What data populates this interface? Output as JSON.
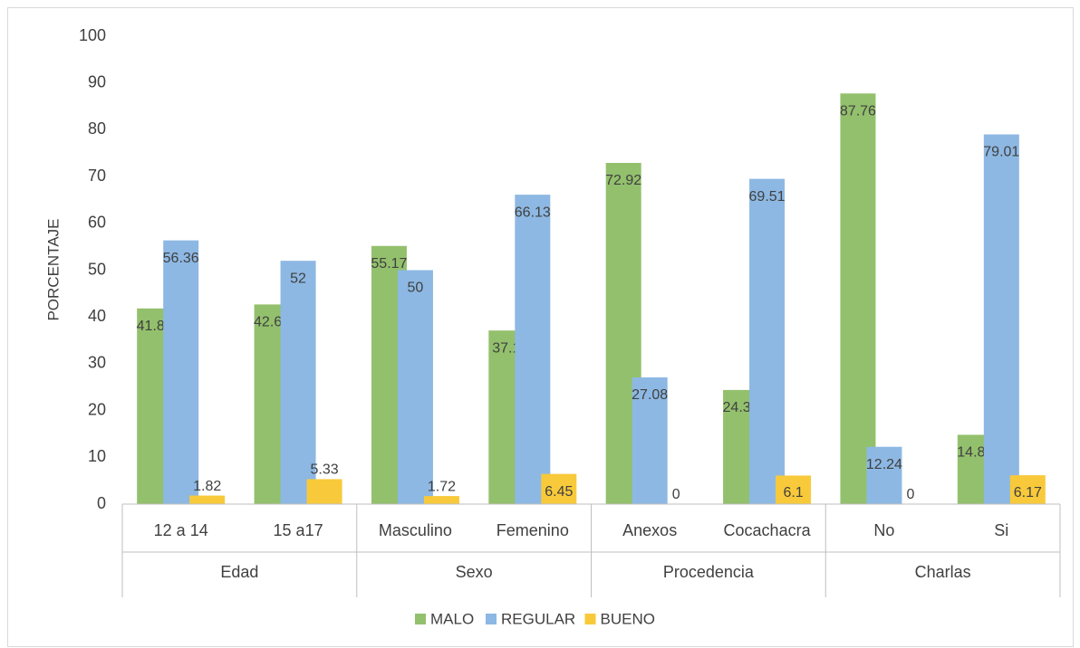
{
  "chart_data": {
    "type": "bar",
    "y_label": "PORCENTAJE",
    "categories": [
      "12 a 14",
      "15 a17",
      "Masculino",
      "Femenino",
      "Anexos",
      "Cocachacra",
      "No",
      "Si"
    ],
    "groups": [
      "Edad",
      "Sexo",
      "Procedencia",
      "Charlas"
    ],
    "series": [
      {
        "name": "MALO",
        "color": "#93c06c",
        "values": [
          41.82,
          42.67,
          55.17,
          37.1,
          72.92,
          24.39,
          87.76,
          14.81
        ]
      },
      {
        "name": "REGULAR",
        "color": "#8db8e3",
        "values": [
          56.36,
          52,
          50,
          66.13,
          27.08,
          69.51,
          12.24,
          79.01
        ]
      },
      {
        "name": "BUENO",
        "color": "#f8c93a",
        "values": [
          1.82,
          5.33,
          1.72,
          6.45,
          0,
          6.1,
          0,
          6.17
        ]
      }
    ],
    "ylim": [
      0,
      100
    ],
    "yticks": [
      0,
      10,
      20,
      30,
      40,
      50,
      60,
      70,
      80,
      90,
      100
    ],
    "grid": false,
    "legend": "bottom"
  }
}
